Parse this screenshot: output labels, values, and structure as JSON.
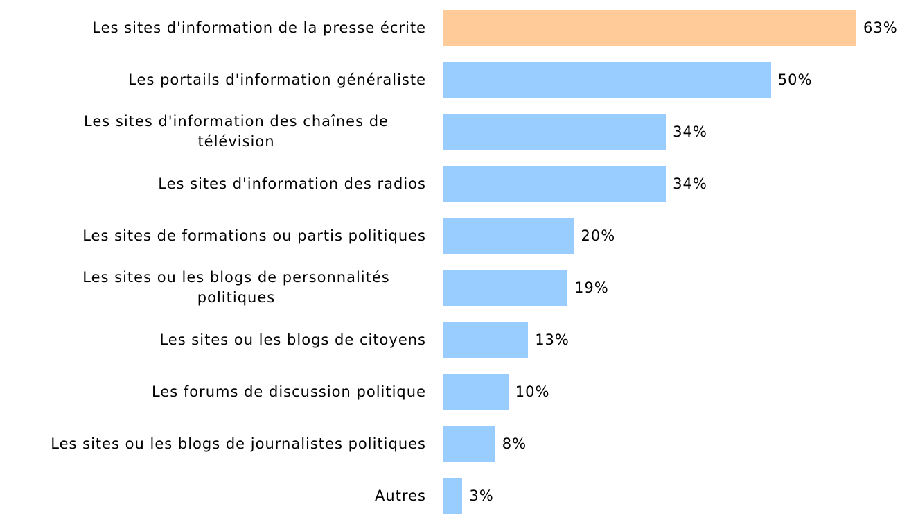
{
  "chart_data": {
    "type": "bar",
    "orientation": "horizontal",
    "categories": [
      "Les sites d'information de la presse écrite",
      "Les portails d'information généraliste",
      "Les sites d'information des chaînes de télévision",
      "Les sites d'information des radios",
      "Les sites de formations ou partis politiques",
      "Les sites ou les blogs de personnalités politiques",
      "Les sites ou les blogs de citoyens",
      "Les forums de discussion politique",
      "Les sites ou les blogs de journalistes politiques",
      "Autres"
    ],
    "values": [
      63,
      50,
      34,
      34,
      20,
      19,
      13,
      10,
      8,
      3
    ],
    "value_labels": [
      "63%",
      "50%",
      "34%",
      "34%",
      "20%",
      "19%",
      "13%",
      "10%",
      "8%",
      "3%"
    ],
    "colors": [
      "#ffcc99",
      "#99ccff",
      "#99ccff",
      "#99ccff",
      "#99ccff",
      "#99ccff",
      "#99ccff",
      "#99ccff",
      "#99ccff",
      "#99ccff"
    ]
  }
}
